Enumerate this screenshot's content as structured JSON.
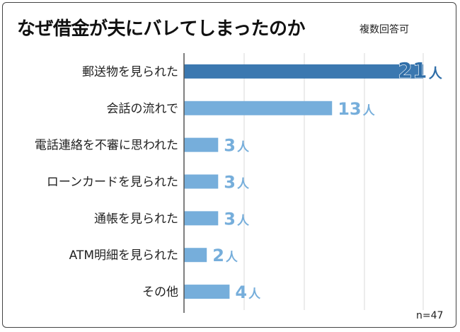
{
  "title": "なぜ借金が夫にバレてしまったのか",
  "note": "複数回答可",
  "sample": "n=47",
  "colors": {
    "bar": "#76aedb",
    "bar_highlight": "#3b78b0",
    "label": "#76aedb",
    "label_highlight": "#2f6ea8",
    "grid": "#d9d9d9",
    "axis": "#555555"
  },
  "chart_data": {
    "type": "bar",
    "orientation": "horizontal",
    "title": "なぜ借金が夫にバレてしまったのか",
    "categories": [
      "郵送物を見られた",
      "会話の流れで",
      "電話連絡を不審に思われた",
      "ローンカードを見られた",
      "通帳を見られた",
      "ATM明細を見られた",
      "その他"
    ],
    "values": [
      21,
      13,
      3,
      3,
      3,
      2,
      4
    ],
    "value_unit": "人",
    "highlight_index": 0,
    "xlim": [
      0,
      21
    ],
    "grid": true
  }
}
